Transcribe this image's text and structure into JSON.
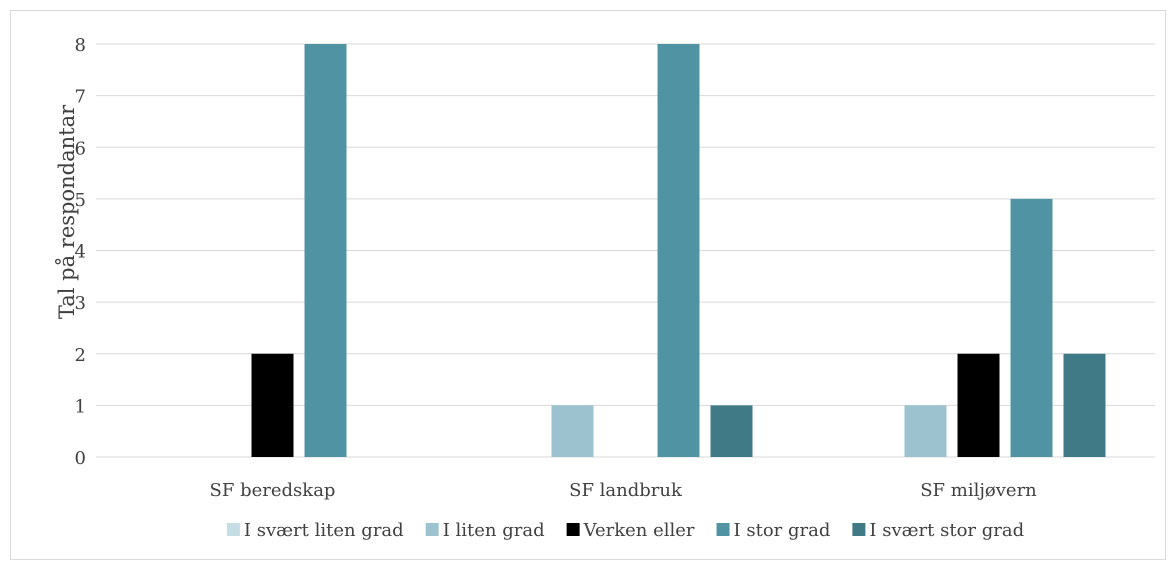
{
  "chart_data": {
    "type": "bar",
    "title": "",
    "xlabel": "",
    "ylabel": "Tal på respondantar",
    "categories": [
      "SF beredskap",
      "SF landbruk",
      "SF miljøvern"
    ],
    "ylim": [
      0,
      8
    ],
    "yticks": [
      0,
      1,
      2,
      3,
      4,
      5,
      6,
      7,
      8
    ],
    "grid": true,
    "legend_position": "bottom",
    "series": [
      {
        "name": "I svært liten grad",
        "color": "#c5dde3",
        "values": [
          0,
          0,
          0
        ]
      },
      {
        "name": "I liten grad",
        "color": "#9dc2cf",
        "values": [
          0,
          1,
          1
        ]
      },
      {
        "name": "Verken eller",
        "color": "#000000",
        "values": [
          2,
          0,
          2
        ]
      },
      {
        "name": "I stor grad",
        "color": "#5094a3",
        "values": [
          8,
          8,
          5
        ]
      },
      {
        "name": "I svært stor grad",
        "color": "#417a87",
        "values": [
          0,
          1,
          2
        ]
      }
    ]
  }
}
